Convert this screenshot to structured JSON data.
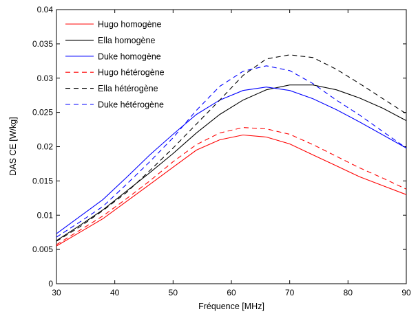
{
  "chart_data": {
    "type": "line",
    "title": "",
    "xlabel": "Fréquence [MHz]",
    "ylabel": "DAS CE [W/kg]",
    "xlim": [
      30,
      90
    ],
    "ylim": [
      0,
      0.04
    ],
    "x_ticks": [
      "30",
      "40",
      "50",
      "60",
      "70",
      "80",
      "90"
    ],
    "y_ticks": [
      "0",
      "0.005",
      "0.01",
      "0.015",
      "0.02",
      "0.025",
      "0.03",
      "0.035",
      "0.04"
    ],
    "grid": false,
    "legend_position": "top-left",
    "x": [
      30,
      34,
      38,
      42,
      46,
      50,
      54,
      58,
      62,
      66,
      70,
      74,
      78,
      82,
      86,
      90
    ],
    "series": [
      {
        "name": "Hugo homogène",
        "color": "#ff0000",
        "dash": "solid",
        "values": [
          0.0055,
          0.0075,
          0.0095,
          0.012,
          0.0145,
          0.017,
          0.0195,
          0.021,
          0.0217,
          0.0214,
          0.0204,
          0.0188,
          0.0172,
          0.0156,
          0.0143,
          0.013
        ]
      },
      {
        "name": "Ella homogène",
        "color": "#000000",
        "dash": "solid",
        "values": [
          0.0063,
          0.0085,
          0.0108,
          0.0135,
          0.0162,
          0.019,
          0.022,
          0.0247,
          0.0268,
          0.0283,
          0.029,
          0.029,
          0.0283,
          0.0271,
          0.0256,
          0.0238
        ]
      },
      {
        "name": "Duke homogène",
        "color": "#0000ff",
        "dash": "solid",
        "values": [
          0.0073,
          0.0098,
          0.0123,
          0.0155,
          0.0188,
          0.0218,
          0.0247,
          0.0268,
          0.0282,
          0.0287,
          0.0282,
          0.027,
          0.0254,
          0.0236,
          0.0217,
          0.0198
        ]
      },
      {
        "name": "Hugo hétérogène",
        "color": "#ff0000",
        "dash": "dashed",
        "values": [
          0.0057,
          0.0078,
          0.0099,
          0.0124,
          0.015,
          0.0178,
          0.0203,
          0.022,
          0.0228,
          0.0226,
          0.0218,
          0.0203,
          0.0186,
          0.0169,
          0.0154,
          0.0138
        ]
      },
      {
        "name": "Ella hétérogène",
        "color": "#000000",
        "dash": "dashed",
        "values": [
          0.0062,
          0.0083,
          0.0107,
          0.0133,
          0.0165,
          0.0198,
          0.0233,
          0.0268,
          0.0304,
          0.0328,
          0.0334,
          0.033,
          0.0313,
          0.0292,
          0.027,
          0.0248
        ]
      },
      {
        "name": "Duke hétérogène",
        "color": "#0000ff",
        "dash": "dashed",
        "values": [
          0.0068,
          0.009,
          0.0113,
          0.0145,
          0.0178,
          0.0213,
          0.0253,
          0.0288,
          0.031,
          0.0318,
          0.0311,
          0.0292,
          0.0268,
          0.0246,
          0.0222,
          0.0198
        ]
      }
    ]
  }
}
